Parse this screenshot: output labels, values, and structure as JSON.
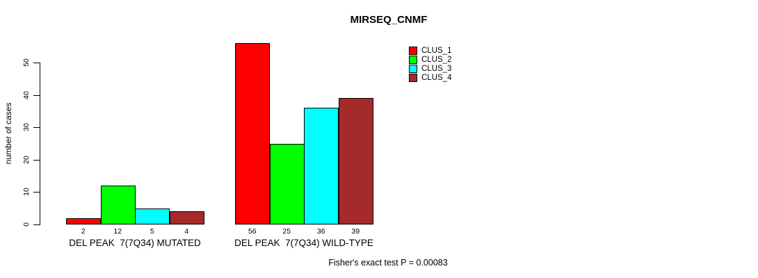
{
  "title": "MIRSEQ_CNMF",
  "footer": "Fisher's exact test P = 0.00083",
  "ylabel": "number of cases",
  "legend": {
    "items": [
      {
        "label": "CLUS_1",
        "color": "#FF0000"
      },
      {
        "label": "CLUS_2",
        "color": "#00FF00"
      },
      {
        "label": "CLUS_3",
        "color": "#00FFFF"
      },
      {
        "label": "CLUS_4",
        "color": "#A52A2A"
      }
    ],
    "position": "top-right"
  },
  "chart_data": {
    "type": "bar",
    "title": "MIRSEQ_CNMF",
    "ylabel": "number of cases",
    "xlabel": "",
    "ylim": [
      0,
      56
    ],
    "yticks": [
      0,
      10,
      20,
      30,
      40,
      50
    ],
    "grid": false,
    "legend_position": "top-right",
    "categories": [
      "DEL PEAK  7(7Q34) MUTATED",
      "DEL PEAK  7(7Q34) WILD-TYPE"
    ],
    "series": [
      {
        "name": "CLUS_1",
        "color": "#FF0000",
        "values": [
          2,
          56
        ]
      },
      {
        "name": "CLUS_2",
        "color": "#00FF00",
        "values": [
          12,
          25
        ]
      },
      {
        "name": "CLUS_3",
        "color": "#00FFFF",
        "values": [
          5,
          36
        ]
      },
      {
        "name": "CLUS_4",
        "color": "#A52A2A",
        "values": [
          4,
          39
        ]
      }
    ],
    "bar_value_labels": [
      [
        2,
        12,
        5,
        4
      ],
      [
        56,
        25,
        36,
        39
      ]
    ],
    "annotation": "Fisher's exact test P = 0.00083"
  }
}
